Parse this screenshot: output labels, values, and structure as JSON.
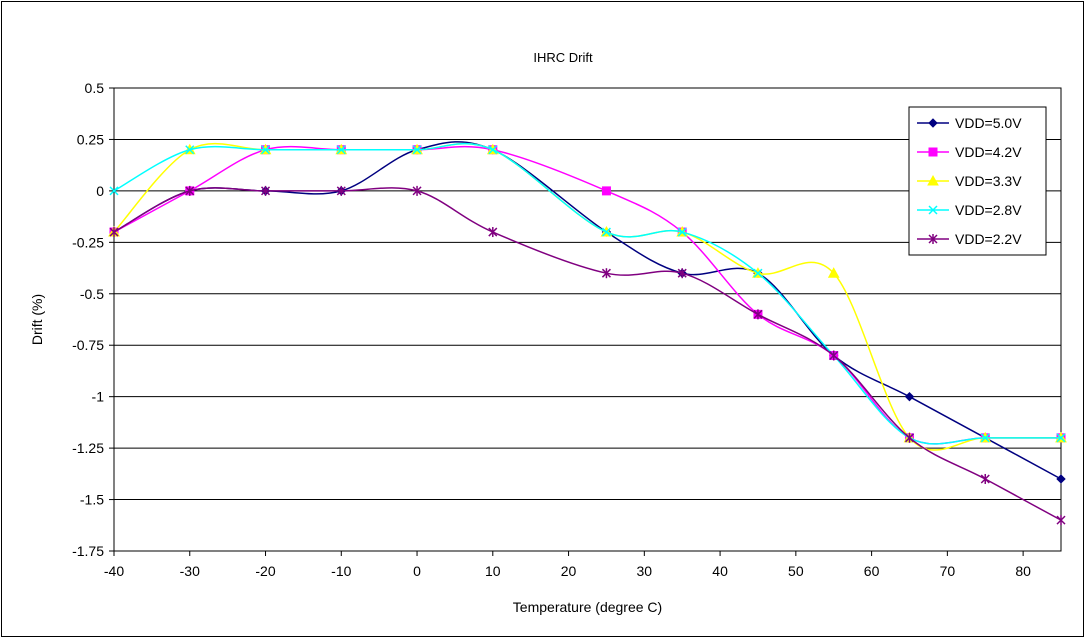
{
  "chart_data": {
    "type": "line",
    "title": "IHRC Drift",
    "xlabel": "Temperature (degree C)",
    "ylabel": "Drift (%)",
    "xlim": [
      -40,
      85
    ],
    "ylim": [
      -1.75,
      0.5
    ],
    "x_ticks": [
      -40,
      -30,
      -20,
      -10,
      0,
      10,
      20,
      30,
      40,
      50,
      60,
      70,
      80
    ],
    "x_tick_labels": [
      "-40",
      "-30",
      "-20",
      "-10",
      "0",
      "10",
      "20",
      "30",
      "40",
      "50",
      "60",
      "70",
      "80"
    ],
    "y_ticks": [
      0.5,
      0.25,
      0,
      -0.25,
      -0.5,
      -0.75,
      -1,
      -1.25,
      -1.5,
      -1.75
    ],
    "y_tick_labels": [
      "0.5",
      "0.25",
      "0",
      "-0.25",
      "-0.5",
      "-0.75",
      "-1",
      "-1.25",
      "-1.5",
      "-1.75"
    ],
    "grid": "horizontal",
    "legend_position": "top-right",
    "x": [
      -40,
      -30,
      -20,
      -10,
      0,
      10,
      25,
      35,
      45,
      55,
      65,
      75,
      85
    ],
    "series": [
      {
        "name": "VDD=5.0V",
        "color": "#000080",
        "marker": "diamond",
        "values": [
          -0.2,
          0,
          0,
          0,
          0.2,
          0.2,
          -0.2,
          -0.4,
          -0.4,
          -0.8,
          -1,
          -1.2,
          -1.4
        ]
      },
      {
        "name": "VDD=4.2V",
        "color": "#ff00ff",
        "marker": "square",
        "values": [
          -0.2,
          0,
          0.2,
          0.2,
          0.2,
          0.2,
          0,
          -0.2,
          -0.6,
          -0.8,
          -1.2,
          -1.2,
          -1.2
        ]
      },
      {
        "name": "VDD=3.3V",
        "color": "#ffff00",
        "marker": "triangle",
        "values": [
          -0.2,
          0.2,
          0.2,
          0.2,
          0.2,
          0.2,
          -0.2,
          -0.2,
          -0.4,
          -0.4,
          -1.2,
          -1.2,
          -1.2
        ]
      },
      {
        "name": "VDD=2.8V",
        "color": "#00ffff",
        "marker": "x",
        "values": [
          0,
          0.2,
          0.2,
          0.2,
          0.2,
          0.2,
          -0.2,
          -0.2,
          -0.4,
          -0.8,
          -1.2,
          -1.2,
          -1.2
        ]
      },
      {
        "name": "VDD=2.2V",
        "color": "#800080",
        "marker": "star",
        "values": [
          -0.2,
          0,
          0,
          0,
          0,
          -0.2,
          -0.4,
          -0.4,
          -0.6,
          -0.8,
          -1.2,
          -1.4,
          -1.6
        ]
      }
    ]
  }
}
